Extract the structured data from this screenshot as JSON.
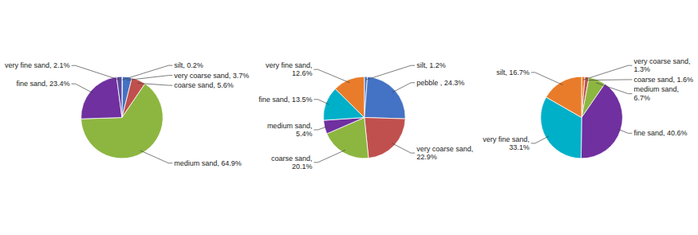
{
  "chart_data": [
    {
      "type": "pie",
      "categories": [
        "silt, 0.2%",
        "very coarse sand, 3.7%",
        "coarse sand, 5.6%",
        "medium sand, 64.9%",
        "fine sand, 23.4%",
        "very fine sand, 2.1%"
      ],
      "values": [
        0.2,
        3.7,
        5.6,
        64.9,
        23.4,
        2.1
      ],
      "colors": [
        "#00b0c8",
        "#4472c4",
        "#c0504d",
        "#8db640",
        "#7030a0",
        "#5b4a9e"
      ]
    },
    {
      "type": "pie",
      "categories": [
        "silt, 1.2%",
        "pebble , 24.3%",
        "very coarse sand,\n22.9%",
        "coarse sand,\n20.1%",
        "medium sand,\n5.4%",
        "fine sand, 13.5%",
        "very fine sand,\n12.6%"
      ],
      "values": [
        1.2,
        24.3,
        22.9,
        20.1,
        5.4,
        13.5,
        12.6
      ],
      "colors": [
        "#4472c4",
        "#4472c4",
        "#c0504d",
        "#8db640",
        "#7030a0",
        "#00b0c8",
        "#e97c2a"
      ]
    },
    {
      "type": "pie",
      "categories": [
        "very coarse sand,\n1.3%",
        "coarse sand, 1.6%",
        "medium sand,\n6.7%",
        "fine sand, 40.6%",
        "very fine sand,\n33.1%",
        "silt, 16.7%"
      ],
      "values": [
        1.3,
        1.6,
        6.7,
        40.6,
        33.1,
        16.7
      ],
      "colors": [
        "#e97c2a",
        "#c0504d",
        "#8db640",
        "#7030a0",
        "#00b0c8",
        "#e97c2a"
      ]
    }
  ]
}
